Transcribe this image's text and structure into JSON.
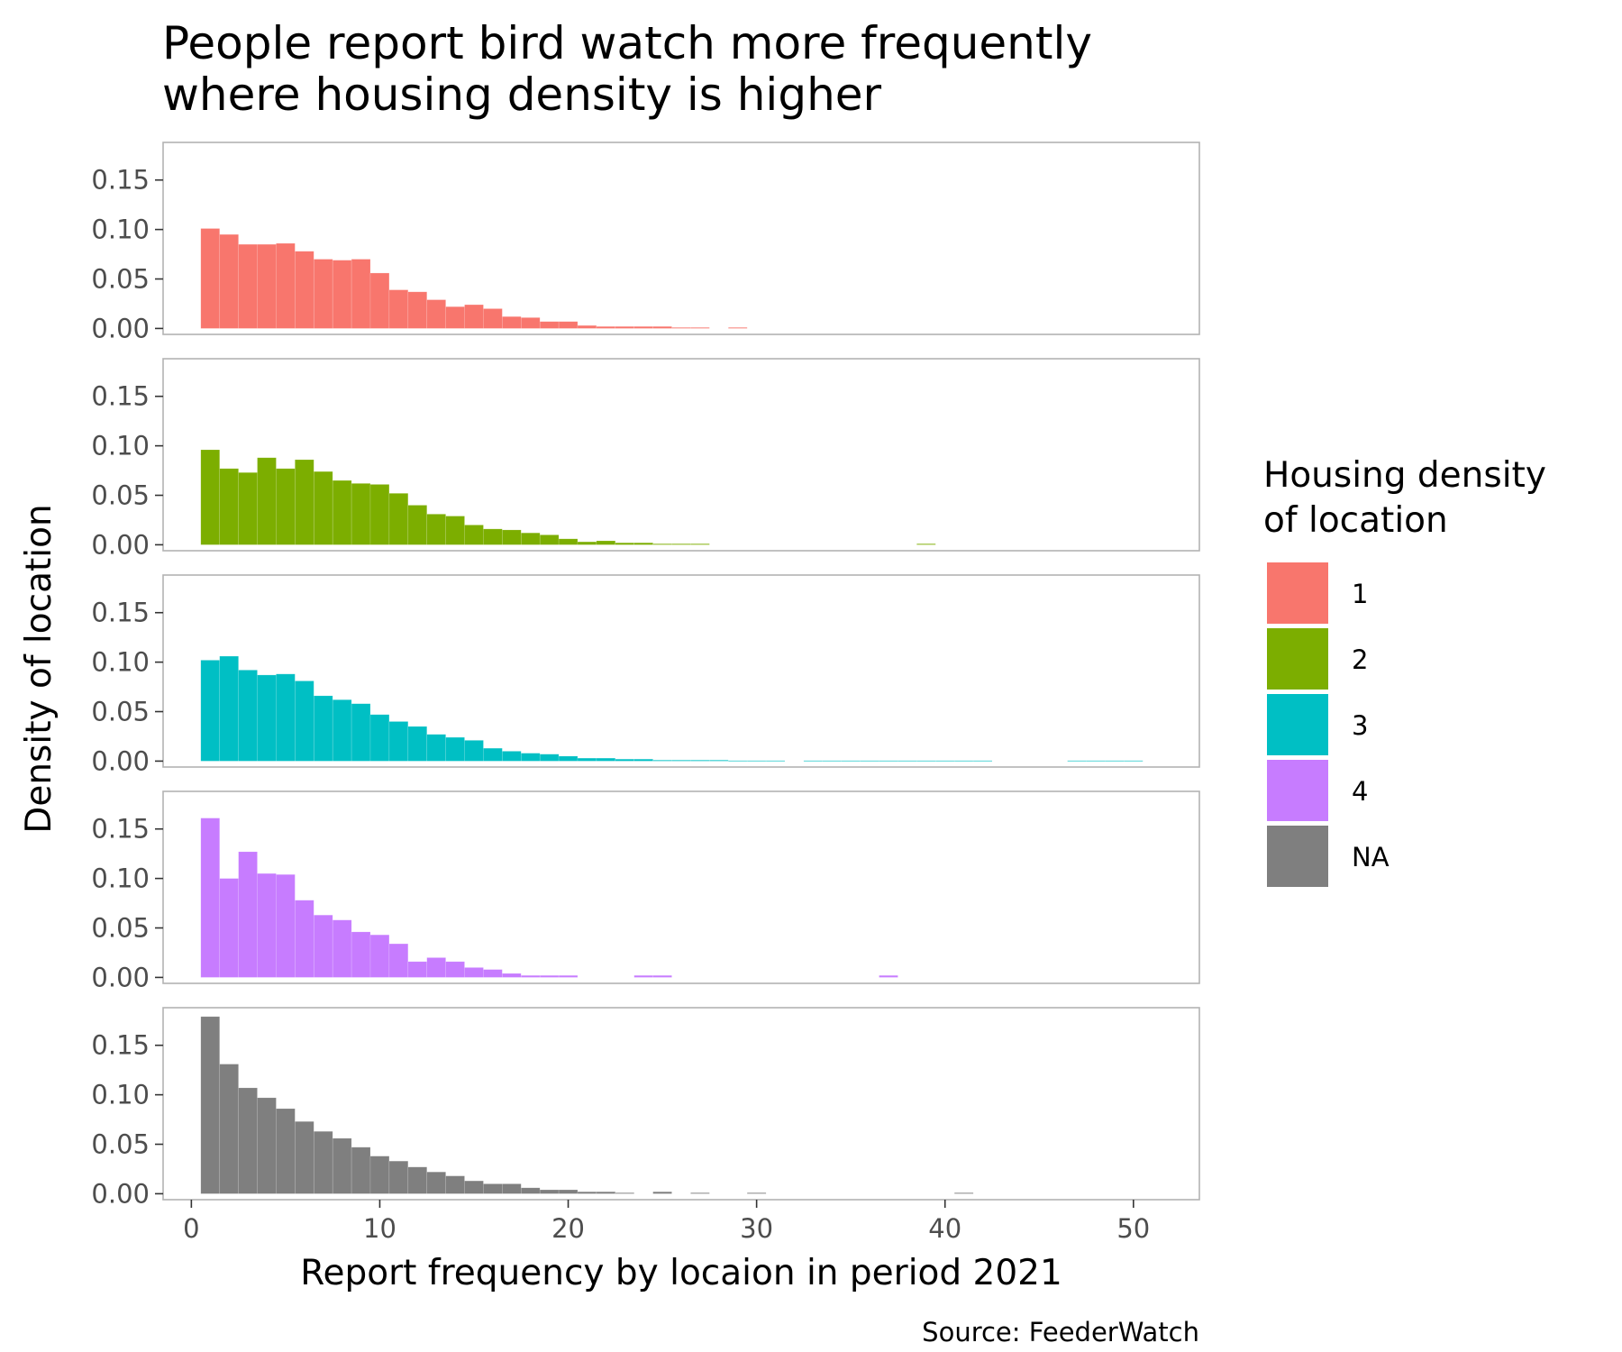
{
  "chart_data": {
    "type": "bar",
    "subtype": "faceted histogram",
    "title_lines": [
      "People report bird watch more frequently",
      "where housing density is higher"
    ],
    "xlabel": "Report frequency by locaion in period 2021",
    "ylabel": "Density of location",
    "caption": "Source: FeederWatch",
    "legend": {
      "title_lines": [
        "Housing density",
        "of location"
      ],
      "position": "right"
    },
    "xlim": [
      -1.5,
      53.5
    ],
    "ylim": [
      -0.006,
      0.188
    ],
    "x_ticks": [
      0,
      10,
      20,
      30,
      40,
      50
    ],
    "x_tick_labels": [
      "0",
      "10",
      "20",
      "30",
      "40",
      "50"
    ],
    "y_ticks": [
      0,
      0.05,
      0.1,
      0.15
    ],
    "y_tick_labels": [
      "0.00",
      "0.05",
      "0.10",
      "0.15"
    ],
    "bin_width": 1,
    "bin_centers": [
      1,
      2,
      3,
      4,
      5,
      6,
      7,
      8,
      9,
      10,
      11,
      12,
      13,
      14,
      15,
      16,
      17,
      18,
      19,
      20,
      21,
      22,
      23,
      24,
      25,
      26,
      27,
      28,
      29,
      30,
      31,
      32,
      33,
      34,
      35,
      36,
      37,
      38,
      39,
      40,
      41,
      42,
      43,
      44,
      45,
      46,
      47,
      48,
      49,
      50
    ],
    "grid": false,
    "series": [
      {
        "name": "1",
        "color": "#F8766D",
        "values": [
          0.101,
          0.095,
          0.085,
          0.085,
          0.086,
          0.078,
          0.07,
          0.069,
          0.07,
          0.056,
          0.039,
          0.037,
          0.029,
          0.022,
          0.024,
          0.02,
          0.012,
          0.011,
          0.007,
          0.007,
          0.003,
          0.002,
          0.002,
          0.002,
          0.002,
          0.001,
          0.001,
          0,
          0.001,
          0,
          0,
          0,
          0,
          0,
          0,
          0,
          0,
          0,
          0,
          0,
          0,
          0,
          0,
          0,
          0,
          0,
          0,
          0,
          0,
          0
        ]
      },
      {
        "name": "2",
        "color": "#7CAE00",
        "values": [
          0.096,
          0.077,
          0.073,
          0.088,
          0.077,
          0.086,
          0.074,
          0.065,
          0.062,
          0.061,
          0.052,
          0.04,
          0.031,
          0.029,
          0.02,
          0.016,
          0.015,
          0.012,
          0.01,
          0.006,
          0.003,
          0.004,
          0.002,
          0.002,
          0.001,
          0.001,
          0.001,
          0,
          0,
          0,
          0,
          0,
          0,
          0,
          0,
          0,
          0,
          0,
          0.001,
          0,
          0,
          0,
          0,
          0,
          0,
          0,
          0,
          0,
          0,
          0
        ]
      },
      {
        "name": "3",
        "color": "#00BFC4",
        "values": [
          0.102,
          0.106,
          0.092,
          0.087,
          0.088,
          0.081,
          0.066,
          0.062,
          0.058,
          0.047,
          0.04,
          0.035,
          0.027,
          0.024,
          0.021,
          0.013,
          0.01,
          0.008,
          0.007,
          0.005,
          0.003,
          0.003,
          0.002,
          0.002,
          0.001,
          0.001,
          0.001,
          0.001,
          0.0005,
          0.0005,
          0.0005,
          0,
          0.0005,
          0.0005,
          0.0005,
          0.0005,
          0.0005,
          0.0005,
          0.0005,
          0.0005,
          0.0005,
          0.0005,
          0,
          0,
          0,
          0,
          0.0005,
          0.0005,
          0.0005,
          0.0005
        ]
      },
      {
        "name": "4",
        "color": "#C77CFF",
        "values": [
          0.161,
          0.1,
          0.127,
          0.105,
          0.104,
          0.078,
          0.063,
          0.058,
          0.046,
          0.043,
          0.034,
          0.016,
          0.02,
          0.016,
          0.01,
          0.008,
          0.004,
          0.002,
          0.002,
          0.002,
          0,
          0,
          0,
          0.002,
          0.002,
          0,
          0,
          0,
          0,
          0,
          0,
          0,
          0,
          0,
          0,
          0,
          0.002,
          0,
          0,
          0,
          0,
          0,
          0,
          0,
          0,
          0,
          0,
          0,
          0,
          0
        ]
      },
      {
        "name": "NA",
        "color": "#7F7F7F",
        "values": [
          0.179,
          0.131,
          0.107,
          0.097,
          0.086,
          0.073,
          0.063,
          0.056,
          0.047,
          0.038,
          0.033,
          0.027,
          0.022,
          0.018,
          0.013,
          0.01,
          0.01,
          0.006,
          0.004,
          0.004,
          0.002,
          0.002,
          0.001,
          0,
          0.002,
          0,
          0.001,
          0,
          0,
          0.001,
          0,
          0,
          0,
          0,
          0,
          0,
          0,
          0,
          0,
          0,
          0.001,
          0,
          0,
          0,
          0,
          0,
          0,
          0,
          0,
          0
        ]
      }
    ]
  }
}
